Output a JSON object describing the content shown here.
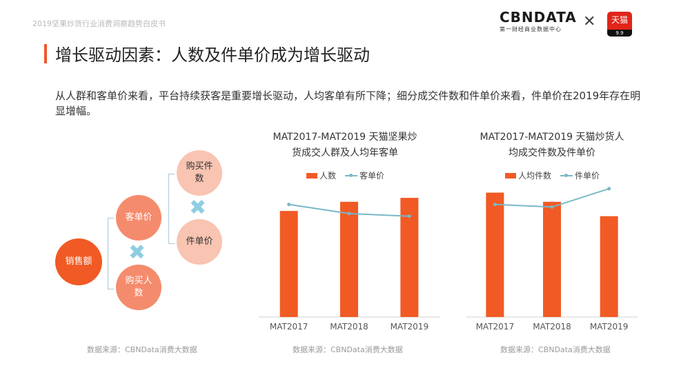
{
  "header": {
    "subtitle": "2019坚果炒货行业消费洞察趋势白皮书",
    "logo_text": "CBNDATA",
    "logo_sub": "第一财经商业数据中心",
    "partner_badge": "天猫",
    "partner_badge_sub": "9.9"
  },
  "title": "增长驱动因素：人数及件单价成为增长驱动",
  "intro": "从人群和客单价来看，平台持续获客是重要增长驱动，人均客单有所下降；细分成交件数和件单价来看，件单价在2019年存在明显增幅。",
  "diagram": {
    "sales": "销售额",
    "unit_price_per_customer": "客单价",
    "buyers": "购买人数",
    "items_bought": "购买件数",
    "price_per_item": "件单价",
    "source": "数据来源：CBNData消费大数据"
  },
  "colors": {
    "bar": "#f15a24",
    "line": "#7ab7c6",
    "title_accent": "#f0552c"
  },
  "chart_data": [
    {
      "type": "bar",
      "title_line1": "MAT2017-MAT2019 天猫坚果炒",
      "title_line2": "货成交人群及人均年客单",
      "categories": [
        "MAT2017",
        "MAT2018",
        "MAT2019"
      ],
      "series": [
        {
          "name": "人数",
          "type": "bar",
          "values": [
            0.81,
            0.88,
            0.91
          ]
        },
        {
          "name": "客单价",
          "type": "line",
          "values": [
            0.86,
            0.79,
            0.77
          ]
        }
      ],
      "ylim": [
        0,
        1
      ],
      "legend": "top",
      "grid": false,
      "source": "数据来源：CBNData消费大数据"
    },
    {
      "type": "bar",
      "title_line1": "MAT2017-MAT2019 天猫炒货人",
      "title_line2": "均成交件数及件单价",
      "categories": [
        "MAT2017",
        "MAT2018",
        "MAT2019"
      ],
      "series": [
        {
          "name": "人均件数",
          "type": "bar",
          "values": [
            0.95,
            0.88,
            0.77
          ]
        },
        {
          "name": "件单价",
          "type": "line",
          "values": [
            0.86,
            0.84,
            0.98
          ]
        }
      ],
      "ylim": [
        0,
        1
      ],
      "legend": "top",
      "grid": false,
      "source": "数据来源：CBNData消费大数据"
    }
  ]
}
